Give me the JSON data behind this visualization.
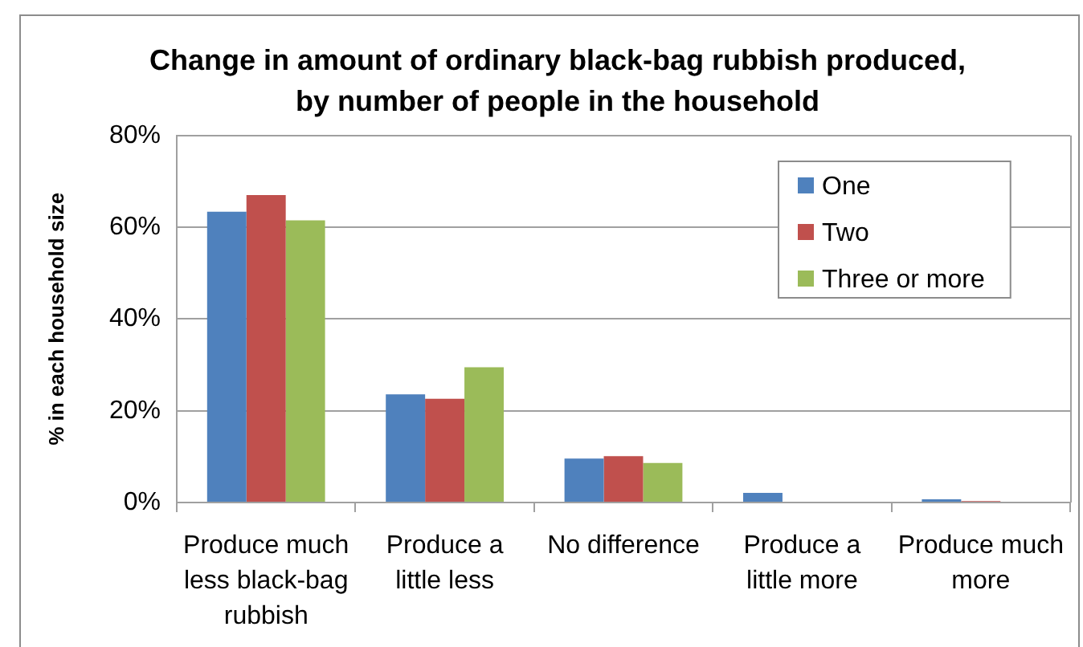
{
  "chart_data": {
    "type": "bar",
    "title": "Change in amount of ordinary black-bag rubbish produced, by number of people in the household",
    "ylabel": "% in each household size",
    "categories": [
      "Produce much less black-bag rubbish",
      "Produce a little less",
      "No difference",
      "Produce a little more",
      "Produce much more"
    ],
    "series": [
      {
        "name": "One",
        "color": "#4f81bd",
        "values": [
          63.4,
          23.6,
          9.6,
          2.1,
          0.7
        ]
      },
      {
        "name": "Two",
        "color": "#c0504d",
        "values": [
          67,
          22.6,
          10.1,
          0,
          0.3
        ]
      },
      {
        "name": "Three or more",
        "color": "#9bbb59",
        "values": [
          61.5,
          29.5,
          8.6,
          0,
          0
        ]
      }
    ],
    "ylim": [
      0,
      80
    ],
    "yticks": [
      {
        "value": 0,
        "label": "0%"
      },
      {
        "value": 20,
        "label": "20%"
      },
      {
        "value": 40,
        "label": "40%"
      },
      {
        "value": 60,
        "label": "60%"
      },
      {
        "value": 80,
        "label": "80%"
      }
    ],
    "grid": "y",
    "legend": "top right"
  }
}
